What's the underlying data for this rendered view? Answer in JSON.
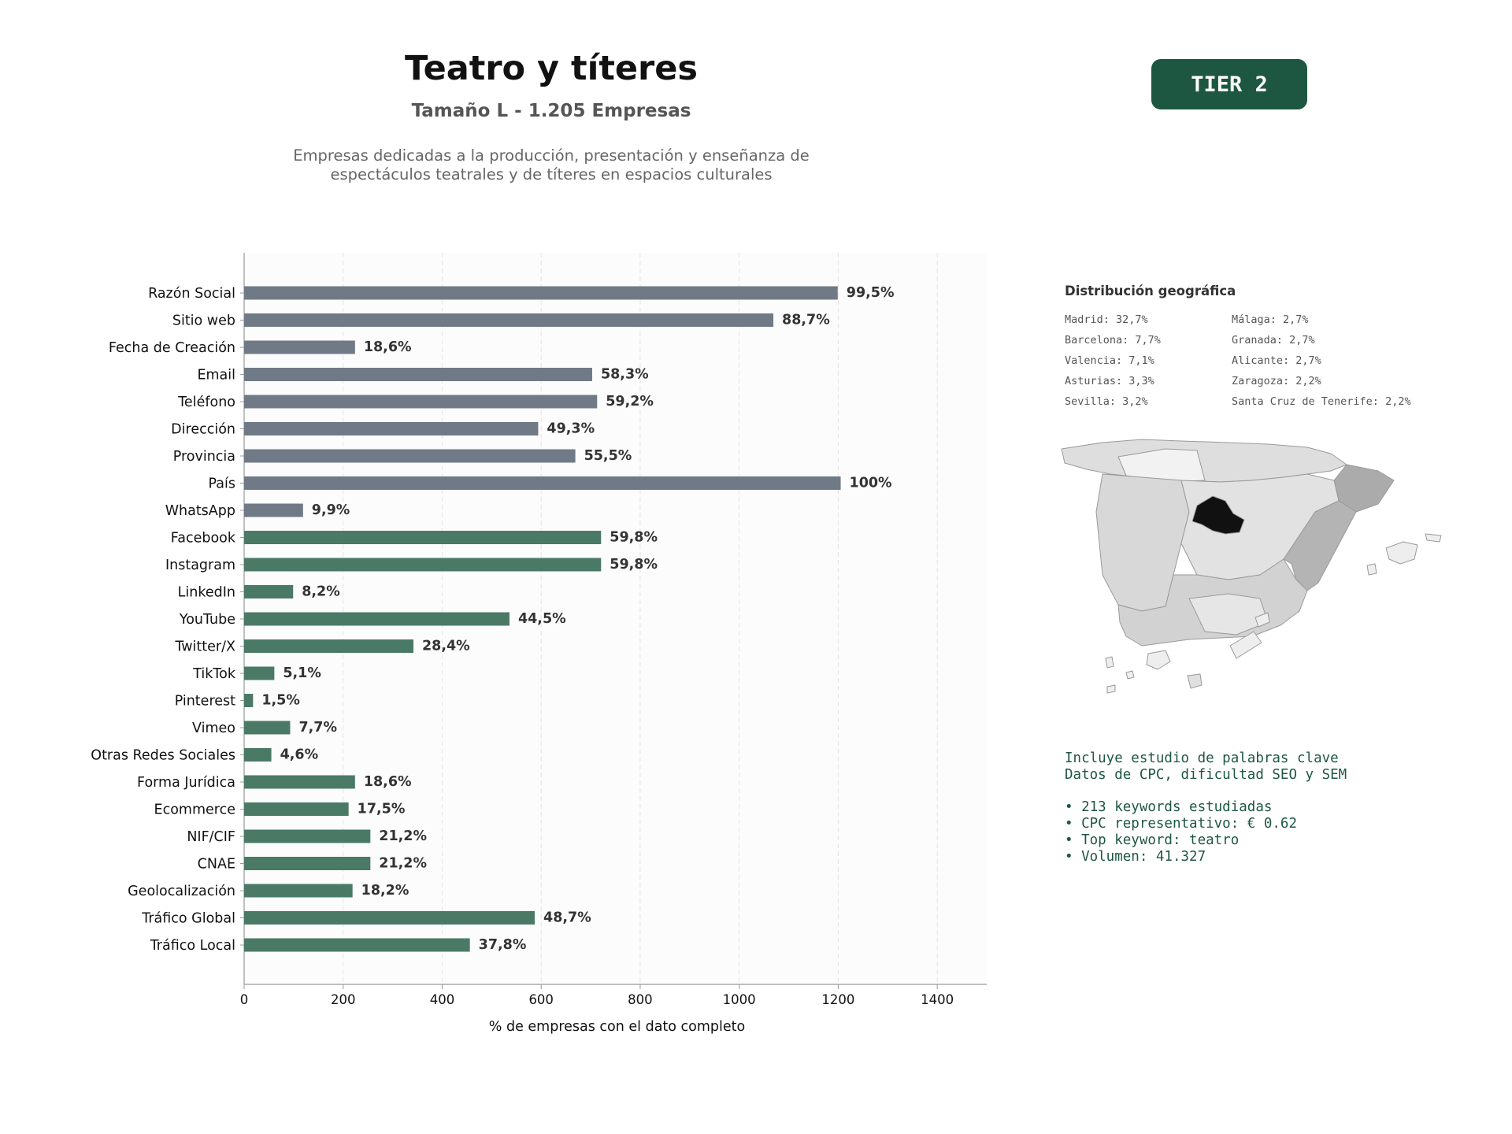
{
  "header": {
    "title": "Teatro y títeres",
    "subtitle": "Tamaño L - 1.205 Empresas",
    "description_lines": [
      "Empresas dedicadas a la producción, presentación y enseñanza de",
      "espectáculos teatrales y de títeres en espacios culturales"
    ],
    "tier_label": "TIER 2"
  },
  "colors": {
    "contact_bar": "#6f7a86",
    "extra_bar": "#4a7a66",
    "accent": "#1e5741",
    "map_highlight": "#111111"
  },
  "chart_data": {
    "type": "bar",
    "orientation": "horizontal",
    "xlabel": "% de empresas con el dato completo",
    "xlim": [
      0,
      1500
    ],
    "xticks": [
      0,
      200,
      400,
      600,
      800,
      1000,
      1200,
      1400
    ],
    "grid": true,
    "categories": [
      "Razón Social",
      "Sitio web",
      "Fecha de Creación",
      "Email",
      "Teléfono",
      "Dirección",
      "Provincia",
      "País",
      "WhatsApp",
      "Facebook",
      "Instagram",
      "LinkedIn",
      "YouTube",
      "Twitter/X",
      "TikTok",
      "Pinterest",
      "Vimeo",
      "Otras Redes Sociales",
      "Forma Jurídica",
      "Ecommerce",
      "NIF/CIF",
      "CNAE",
      "Geolocalización",
      "Tráfico Global",
      "Tráfico Local"
    ],
    "values": [
      1199,
      1069,
      224,
      703,
      713,
      594,
      669,
      1205,
      119,
      721,
      721,
      99,
      536,
      342,
      61,
      18,
      93,
      55,
      224,
      211,
      255,
      255,
      219,
      587,
      456
    ],
    "labels": [
      "99,5%",
      "88,7%",
      "18,6%",
      "58,3%",
      "59,2%",
      "49,3%",
      "55,5%",
      "100%",
      "9,9%",
      "59,8%",
      "59,8%",
      "8,2%",
      "44,5%",
      "28,4%",
      "5,1%",
      "1,5%",
      "7,7%",
      "4,6%",
      "18,6%",
      "17,5%",
      "21,2%",
      "21,2%",
      "18,2%",
      "48,7%",
      "37,8%"
    ],
    "bar_groups": [
      "contact",
      "contact",
      "contact",
      "contact",
      "contact",
      "contact",
      "contact",
      "contact",
      "contact",
      "extra",
      "extra",
      "extra",
      "extra",
      "extra",
      "extra",
      "extra",
      "extra",
      "extra",
      "extra",
      "extra",
      "extra",
      "extra",
      "extra",
      "extra",
      "extra"
    ]
  },
  "geo": {
    "title": "Distribución geográfica",
    "column_1": [
      "Madrid: 32,7%",
      "Barcelona: 7,7%",
      "Valencia: 7,1%",
      "Asturias: 3,3%",
      "Sevilla: 3,2%"
    ],
    "column_2": [
      "Málaga: 2,7%",
      "Granada: 2,7%",
      "Alicante: 2,7%",
      "Zaragoza: 2,2%",
      "Santa Cruz de Tenerife: 2,2%"
    ]
  },
  "keywords": {
    "intro": [
      "Incluye estudio de palabras clave",
      "Datos de CPC, dificultad SEO y SEM"
    ],
    "bullets": [
      "• 213 keywords estudiadas",
      "• CPC representativo: € 0.62",
      "• Top keyword: teatro",
      "• Volumen: 41.327"
    ]
  }
}
